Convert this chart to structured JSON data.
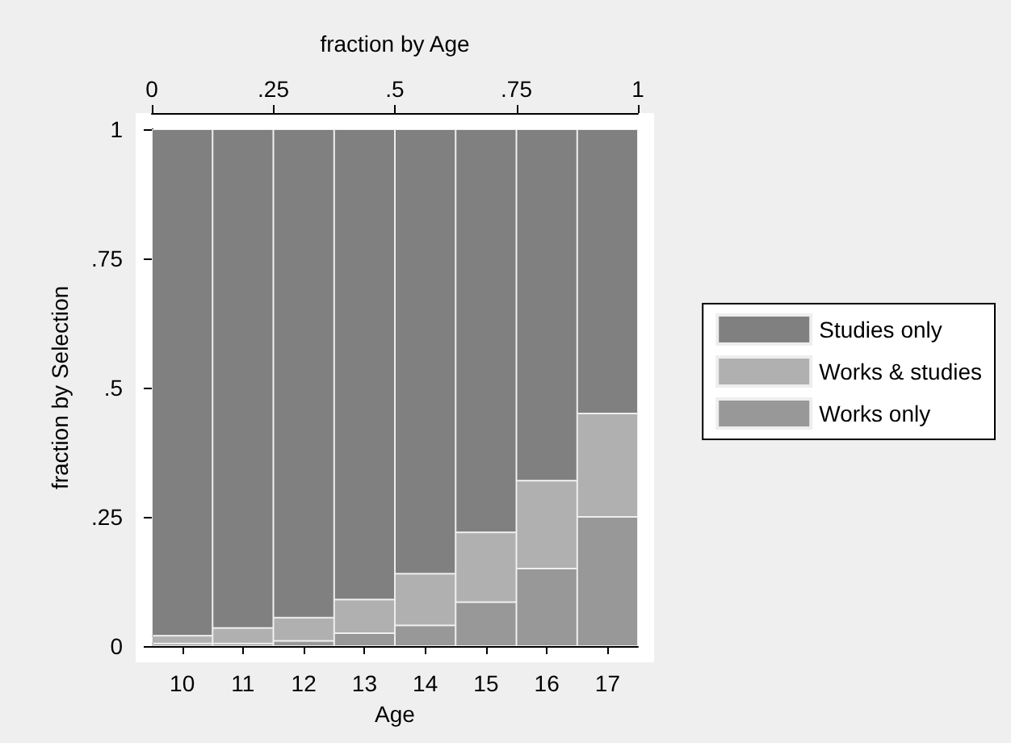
{
  "chart_data": {
    "type": "bar",
    "stacked": true,
    "xlabel": "Age",
    "ylabel": "fraction by Selection",
    "x2label": "fraction by Age",
    "categories": [
      "10",
      "11",
      "12",
      "13",
      "14",
      "15",
      "16",
      "17"
    ],
    "series": [
      {
        "name": "Works only",
        "color": "#989898",
        "values": [
          0.005,
          0.005,
          0.01,
          0.025,
          0.04,
          0.085,
          0.15,
          0.25
        ]
      },
      {
        "name": "Works & studies",
        "color": "#b0b0b0",
        "values": [
          0.015,
          0.03,
          0.045,
          0.065,
          0.1,
          0.135,
          0.17,
          0.2
        ]
      },
      {
        "name": "Studies only",
        "color": "#808080",
        "values": [
          0.98,
          0.965,
          0.945,
          0.91,
          0.86,
          0.78,
          0.68,
          0.55
        ]
      }
    ],
    "ylim": [
      0,
      1
    ],
    "yticks": [
      0,
      {
        "value": 0.25,
        "label": ".25"
      },
      {
        "value": 0.5,
        "label": ".5"
      },
      {
        "value": 0.75,
        "label": ".75"
      },
      1
    ],
    "x2lim": [
      0,
      1
    ],
    "x2ticks": [
      0,
      {
        "value": 0.25,
        "label": ".25"
      },
      {
        "value": 0.5,
        "label": ".5"
      },
      {
        "value": 0.75,
        "label": ".75"
      },
      1
    ],
    "legend": "right",
    "grid": false
  }
}
